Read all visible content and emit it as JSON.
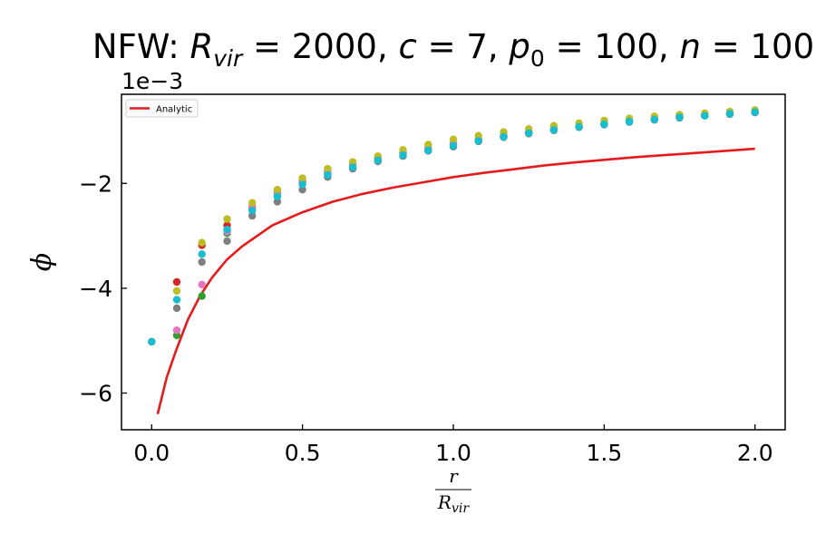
{
  "chart_data": {
    "type": "scatter",
    "title": {
      "prefix": "NFW: ",
      "parts": [
        {
          "sym": "R",
          "sub": "vir",
          "val": "2000"
        },
        {
          "sym": "c",
          "val": "7"
        },
        {
          "sym": "p",
          "sub": "0",
          "val": "100"
        },
        {
          "sym": "n",
          "val": "100"
        }
      ]
    },
    "offset_text": "1e−3",
    "xlabel": {
      "num": "r",
      "den": "R",
      "den_sub": "vir"
    },
    "ylabel": "ϕ",
    "xlim": [
      -0.1,
      2.1
    ],
    "ylim": [
      -6.7,
      -0.3
    ],
    "xticks": [
      0.0,
      0.5,
      1.0,
      1.5,
      2.0
    ],
    "xtick_labels": [
      "0.0",
      "0.5",
      "1.0",
      "1.5",
      "2.0"
    ],
    "yticks": [
      -6,
      -4,
      -2
    ],
    "ytick_labels": [
      "−6",
      "−4",
      "−2"
    ],
    "legend": {
      "position": "top-left",
      "entries": [
        {
          "label": "Analytic",
          "color": "#e41a1c"
        }
      ]
    },
    "analytic": {
      "name": "Analytic",
      "color": "#e41a1c",
      "x": [
        0.02,
        0.05,
        0.08,
        0.12,
        0.16,
        0.2,
        0.25,
        0.3,
        0.4,
        0.5,
        0.6,
        0.7,
        0.8,
        0.9,
        1.0,
        1.1,
        1.2,
        1.3,
        1.4,
        1.5,
        1.6,
        1.7,
        1.8,
        1.9,
        2.0
      ],
      "y": [
        -6.4,
        -5.7,
        -5.2,
        -4.6,
        -4.15,
        -3.8,
        -3.45,
        -3.2,
        -2.8,
        -2.55,
        -2.35,
        -2.2,
        -2.08,
        -1.98,
        -1.88,
        -1.8,
        -1.73,
        -1.66,
        -1.6,
        -1.55,
        -1.5,
        -1.46,
        -1.42,
        -1.38,
        -1.34
      ]
    },
    "x": [
      0.0,
      0.0833,
      0.1667,
      0.25,
      0.3333,
      0.4167,
      0.5,
      0.5833,
      0.6667,
      0.75,
      0.8333,
      0.9167,
      1.0,
      1.0833,
      1.1667,
      1.25,
      1.3333,
      1.4167,
      1.5,
      1.5833,
      1.6667,
      1.75,
      1.8333,
      1.9167,
      2.0
    ],
    "series": [
      {
        "color": "#d62728",
        "values": [
          -5.02,
          -3.88,
          -3.18,
          -2.8,
          -2.45,
          -2.18,
          -1.95,
          -1.77,
          -1.63,
          -1.52,
          -1.41,
          -1.33,
          -1.24,
          -1.16,
          -1.09,
          -1.02,
          -0.96,
          -0.91,
          -0.86,
          -0.81,
          -0.77,
          -0.73,
          -0.7,
          -0.66,
          -0.63
        ]
      },
      {
        "color": "#2ca02c",
        "values": [
          -5.02,
          -4.9,
          -4.15,
          -2.95,
          -2.48,
          -2.2,
          -1.98,
          -1.8,
          -1.65,
          -1.53,
          -1.42,
          -1.34,
          -1.25,
          -1.17,
          -1.1,
          -1.03,
          -0.97,
          -0.92,
          -0.87,
          -0.82,
          -0.78,
          -0.74,
          -0.7,
          -0.67,
          -0.64
        ]
      },
      {
        "color": "#e377c2",
        "values": [
          -5.02,
          -4.8,
          -3.93,
          -2.92,
          -2.47,
          -2.2,
          -1.97,
          -1.79,
          -1.64,
          -1.52,
          -1.42,
          -1.33,
          -1.24,
          -1.17,
          -1.09,
          -1.03,
          -0.97,
          -0.91,
          -0.86,
          -0.82,
          -0.77,
          -0.73,
          -0.7,
          -0.66,
          -0.63
        ]
      },
      {
        "color": "#7f7f7f",
        "values": [
          -5.02,
          -4.38,
          -3.5,
          -3.1,
          -2.62,
          -2.35,
          -2.12,
          -1.88,
          -1.72,
          -1.58,
          -1.48,
          -1.38,
          -1.3,
          -1.2,
          -1.12,
          -1.05,
          -0.99,
          -0.93,
          -0.88,
          -0.83,
          -0.79,
          -0.75,
          -0.71,
          -0.68,
          -0.65
        ]
      },
      {
        "color": "#bcbd22",
        "values": [
          -5.02,
          -4.05,
          -3.13,
          -2.68,
          -2.37,
          -2.12,
          -1.9,
          -1.72,
          -1.59,
          -1.48,
          -1.36,
          -1.26,
          -1.16,
          -1.09,
          -1.02,
          -0.96,
          -0.9,
          -0.85,
          -0.8,
          -0.76,
          -0.72,
          -0.69,
          -0.66,
          -0.63,
          -0.6
        ]
      },
      {
        "color": "#17becf",
        "values": [
          -5.02,
          -4.22,
          -3.35,
          -2.88,
          -2.52,
          -2.25,
          -2.02,
          -1.84,
          -1.69,
          -1.56,
          -1.46,
          -1.37,
          -1.28,
          -1.19,
          -1.11,
          -1.04,
          -0.98,
          -0.92,
          -0.87,
          -0.82,
          -0.78,
          -0.74,
          -0.71,
          -0.67,
          -0.64
        ]
      }
    ]
  }
}
